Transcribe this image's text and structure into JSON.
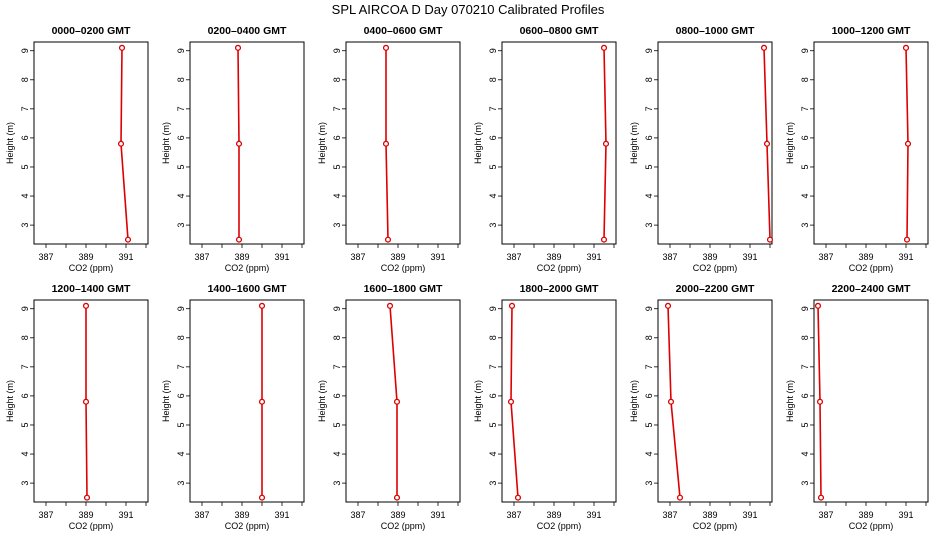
{
  "title": "SPL AIRCOA D  Day 070210  Calibrated Profiles",
  "chart_data": {
    "type": "line",
    "title": "SPL AIRCOA D  Day 070210  Calibrated Profiles",
    "xlabel": "CO2 (ppm)",
    "ylabel": "Height (m)",
    "xlim": [
      386.4,
      392.1
    ],
    "ylim": [
      2.35,
      9.3
    ],
    "x_ticks": [
      387,
      388,
      389,
      390,
      391,
      392
    ],
    "x_tick_labels": [
      "387",
      "389",
      "391"
    ],
    "y_ticks": [
      3,
      4,
      5,
      6,
      7,
      8,
      9
    ],
    "y_tick_labels": [
      "3",
      "4",
      "5",
      "6",
      "7",
      "8",
      "9"
    ],
    "heights": [
      2.5,
      5.8,
      9.1
    ],
    "line_color": "#dd0000",
    "marker_color": "#dd0000",
    "panels": [
      {
        "title": "0000–0200 GMT",
        "x": [
          391.1,
          390.75,
          390.8
        ],
        "y": [
          2.5,
          5.8,
          9.1
        ]
      },
      {
        "title": "0200–0400 GMT",
        "x": [
          388.85,
          388.85,
          388.8
        ],
        "y": [
          2.5,
          5.8,
          9.1
        ]
      },
      {
        "title": "0400–0600 GMT",
        "x": [
          388.5,
          388.4,
          388.4
        ],
        "y": [
          2.5,
          5.8,
          9.1
        ]
      },
      {
        "title": "0600–0800 GMT",
        "x": [
          391.5,
          391.6,
          391.5
        ],
        "y": [
          2.5,
          5.8,
          9.1
        ]
      },
      {
        "title": "0800–1000 GMT",
        "x": [
          392.0,
          391.85,
          391.7
        ],
        "y": [
          2.5,
          5.8,
          9.1
        ]
      },
      {
        "title": "1000–1200 GMT",
        "x": [
          391.05,
          391.1,
          391.0
        ],
        "y": [
          2.5,
          5.8,
          9.1
        ]
      },
      {
        "title": "1200–1400 GMT",
        "x": [
          389.05,
          389.0,
          389.0
        ],
        "y": [
          2.5,
          5.8,
          9.1
        ]
      },
      {
        "title": "1400–1600 GMT",
        "x": [
          390.0,
          390.0,
          390.0
        ],
        "y": [
          2.5,
          5.8,
          9.1
        ]
      },
      {
        "title": "1600–1800 GMT",
        "x": [
          388.95,
          388.95,
          388.6
        ],
        "y": [
          2.5,
          5.8,
          9.1
        ]
      },
      {
        "title": "1800–2000 GMT",
        "x": [
          387.2,
          386.85,
          386.9
        ],
        "y": [
          2.5,
          5.8,
          9.1
        ]
      },
      {
        "title": "2000–2200 GMT",
        "x": [
          387.5,
          387.05,
          386.9
        ],
        "y": [
          2.5,
          5.8,
          9.1
        ]
      },
      {
        "title": "2200–2400 GMT",
        "x": [
          386.75,
          386.7,
          386.6
        ],
        "y": [
          2.5,
          5.8,
          9.1
        ]
      }
    ]
  }
}
